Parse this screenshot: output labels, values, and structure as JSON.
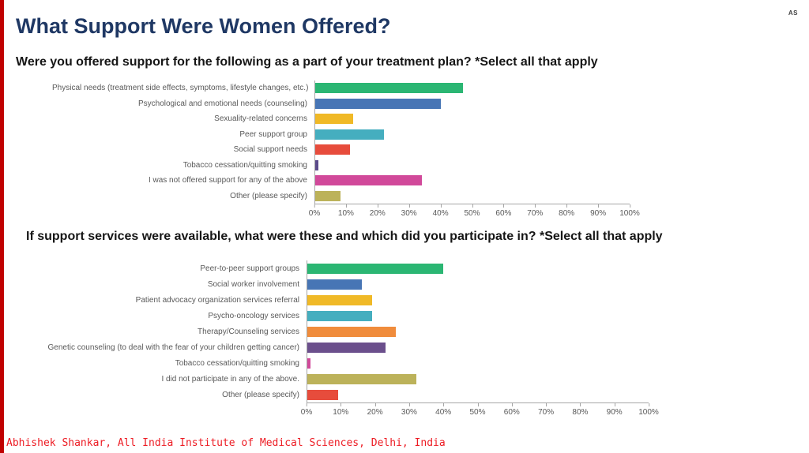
{
  "page": {
    "corner_label": "AS",
    "title": "What Support Were Women Offered?",
    "title_color": "#1F3864",
    "accent_stripe_color": "#C00000",
    "footer": "Abhishek Shankar, All India Institute of Medical Sciences, Delhi, India",
    "footer_color": "#ED1C24"
  },
  "questions": {
    "q1": "Were you offered support for the following as a part of your treatment plan? *Select all that apply",
    "q2": "If support services were available, what were these and which did you participate in? *Select all that apply"
  },
  "chart_data": [
    {
      "type": "bar",
      "orientation": "horizontal",
      "title": "Were you offered support for the following as a part of your treatment plan? *Select all that apply",
      "categories": [
        "Physical needs (treatment side effects, symptoms, lifestyle changes, etc.)",
        "Psychological and emotional needs (counseling)",
        "Sexuality-related concerns",
        "Peer support group",
        "Social support needs",
        "Tobacco cessation/quitting smoking",
        "I was not offered support for any of the above",
        "Other (please specify)"
      ],
      "values": [
        47,
        40,
        12,
        22,
        11,
        1,
        34,
        8
      ],
      "colors": [
        "#2BB673",
        "#4775B5",
        "#F0B927",
        "#45AEBF",
        "#E74C3C",
        "#5B4B8A",
        "#D1499A",
        "#BCB25A"
      ],
      "xlabel": "",
      "ylabel": "",
      "xlim": [
        0,
        100
      ],
      "x_ticks": [
        "0%",
        "10%",
        "20%",
        "30%",
        "40%",
        "50%",
        "60%",
        "70%",
        "80%",
        "90%",
        "100%"
      ],
      "grid": false,
      "legend": "none"
    },
    {
      "type": "bar",
      "orientation": "horizontal",
      "title": "If support services were available, what were these and which did you participate in? *Select all that apply",
      "categories": [
        "Peer-to-peer support groups",
        "Social worker involvement",
        "Patient advocacy organization services referral",
        "Psycho-oncology services",
        "Therapy/Counseling services",
        "Genetic counseling (to deal with the fear of your children getting cancer)",
        "Tobacco cessation/quitting smoking",
        "I did not participate in any of the above.",
        "Other (please specify)"
      ],
      "values": [
        40,
        16,
        19,
        19,
        26,
        23,
        1,
        32,
        9
      ],
      "colors": [
        "#2BB673",
        "#4775B5",
        "#F0B927",
        "#45AEBF",
        "#F08C3C",
        "#6B4F8C",
        "#D1499A",
        "#BCB25A",
        "#E74C3C"
      ],
      "xlabel": "",
      "ylabel": "",
      "xlim": [
        0,
        100
      ],
      "x_ticks": [
        "0%",
        "10%",
        "20%",
        "30%",
        "40%",
        "50%",
        "60%",
        "70%",
        "80%",
        "90%",
        "100%"
      ],
      "grid": false,
      "legend": "none"
    }
  ]
}
